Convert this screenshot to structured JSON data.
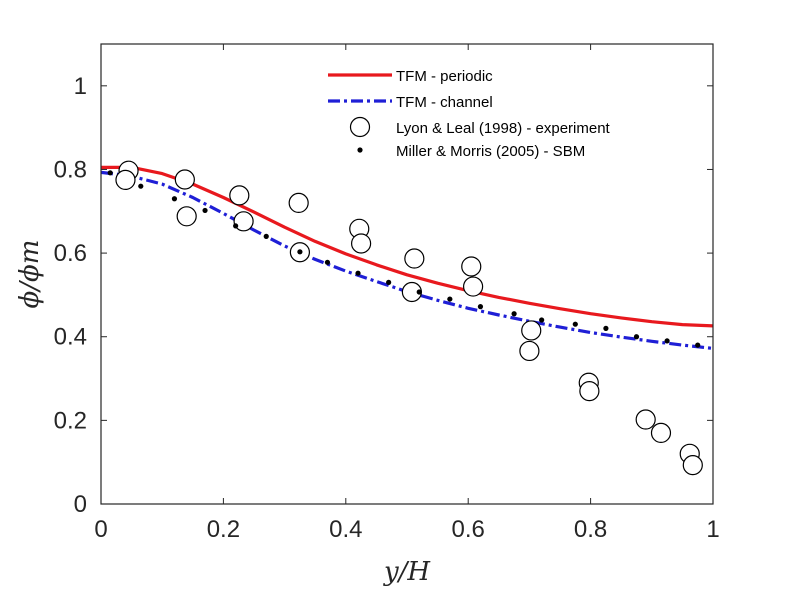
{
  "chart_data": {
    "type": "line",
    "title": "",
    "xlabel": "y/H",
    "ylabel": "ϕ/ϕm",
    "xlim": [
      0,
      1
    ],
    "ylim": [
      0,
      1.1
    ],
    "xticks": [
      0,
      0.2,
      0.4,
      0.6,
      0.8,
      1
    ],
    "xtick_labels": [
      "0",
      "0.2",
      "0.4",
      "0.6",
      "0.8",
      "1"
    ],
    "yticks": [
      0,
      0.2,
      0.4,
      0.6,
      0.8,
      1
    ],
    "ytick_labels": [
      "0",
      "0.2",
      "0.4",
      "0.6",
      "0.8",
      "1"
    ],
    "grid": false,
    "legend_position": "top-right",
    "series": [
      {
        "name": "TFM - periodic",
        "kind": "line",
        "style": "solid",
        "color": "#e8191e",
        "x": [
          0,
          0.03,
          0.06,
          0.1,
          0.15,
          0.2,
          0.25,
          0.3,
          0.35,
          0.4,
          0.45,
          0.5,
          0.55,
          0.6,
          0.65,
          0.7,
          0.75,
          0.8,
          0.85,
          0.9,
          0.95,
          1.0
        ],
        "y": [
          0.805,
          0.805,
          0.802,
          0.79,
          0.765,
          0.733,
          0.698,
          0.662,
          0.628,
          0.598,
          0.572,
          0.548,
          0.528,
          0.51,
          0.494,
          0.48,
          0.467,
          0.455,
          0.445,
          0.436,
          0.429,
          0.426
        ]
      },
      {
        "name": "TFM - channel",
        "kind": "line",
        "style": "dash-dot",
        "color": "#1f1fd6",
        "x": [
          0,
          0.03,
          0.06,
          0.1,
          0.15,
          0.2,
          0.25,
          0.3,
          0.35,
          0.4,
          0.45,
          0.5,
          0.55,
          0.6,
          0.65,
          0.7,
          0.75,
          0.8,
          0.85,
          0.9,
          0.95,
          1.0
        ],
        "y": [
          0.793,
          0.788,
          0.78,
          0.765,
          0.733,
          0.695,
          0.655,
          0.617,
          0.585,
          0.557,
          0.532,
          0.508,
          0.487,
          0.468,
          0.452,
          0.437,
          0.423,
          0.41,
          0.399,
          0.389,
          0.38,
          0.372
        ]
      },
      {
        "name": "Lyon & Leal (1998) - experiment",
        "kind": "marker",
        "marker": "open-circle",
        "color": "#000000",
        "x": [
          0.045,
          0.04,
          0.137,
          0.14,
          0.226,
          0.233,
          0.323,
          0.325,
          0.422,
          0.425,
          0.512,
          0.508,
          0.605,
          0.608,
          0.703,
          0.7,
          0.797,
          0.798,
          0.89,
          0.915,
          0.962,
          0.967
        ],
        "y": [
          0.797,
          0.775,
          0.776,
          0.688,
          0.738,
          0.676,
          0.72,
          0.602,
          0.658,
          0.623,
          0.587,
          0.507,
          0.568,
          0.52,
          0.415,
          0.366,
          0.29,
          0.27,
          0.202,
          0.17,
          0.12,
          0.093
        ]
      },
      {
        "name": "Miller & Morris (2005) - SBM",
        "kind": "marker",
        "marker": "dot",
        "color": "#000000",
        "x": [
          0.015,
          0.065,
          0.12,
          0.17,
          0.22,
          0.27,
          0.325,
          0.37,
          0.42,
          0.47,
          0.52,
          0.57,
          0.62,
          0.675,
          0.72,
          0.775,
          0.825,
          0.875,
          0.925,
          0.975
        ],
        "y": [
          0.792,
          0.76,
          0.73,
          0.702,
          0.665,
          0.64,
          0.603,
          0.578,
          0.552,
          0.53,
          0.507,
          0.49,
          0.472,
          0.455,
          0.44,
          0.43,
          0.42,
          0.4,
          0.39,
          0.38
        ]
      }
    ]
  }
}
